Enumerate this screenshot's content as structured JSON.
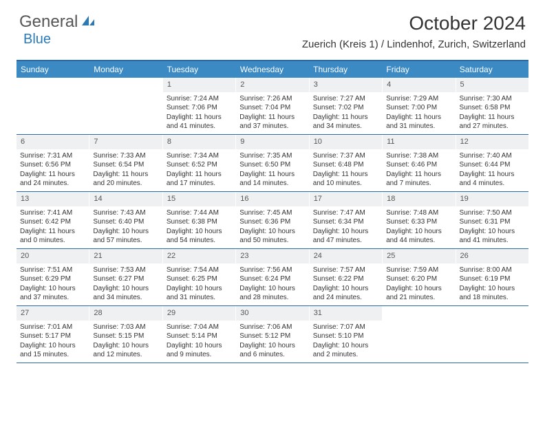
{
  "colors": {
    "header_bg": "#3b8ac4",
    "border": "#2a6aa8",
    "daynum_bg": "#eef0f1",
    "text": "#333333",
    "logo_gray": "#555555",
    "logo_blue": "#2a7ab8"
  },
  "logo": {
    "general": "General",
    "blue": "Blue"
  },
  "title": "October 2024",
  "location": "Zuerich (Kreis 1) / Lindenhof, Zurich, Switzerland",
  "weekdays": [
    "Sunday",
    "Monday",
    "Tuesday",
    "Wednesday",
    "Thursday",
    "Friday",
    "Saturday"
  ],
  "weeks": [
    [
      {
        "n": "",
        "sr": "",
        "ss": "",
        "dl": ""
      },
      {
        "n": "",
        "sr": "",
        "ss": "",
        "dl": ""
      },
      {
        "n": "1",
        "sr": "Sunrise: 7:24 AM",
        "ss": "Sunset: 7:06 PM",
        "dl": "Daylight: 11 hours and 41 minutes."
      },
      {
        "n": "2",
        "sr": "Sunrise: 7:26 AM",
        "ss": "Sunset: 7:04 PM",
        "dl": "Daylight: 11 hours and 37 minutes."
      },
      {
        "n": "3",
        "sr": "Sunrise: 7:27 AM",
        "ss": "Sunset: 7:02 PM",
        "dl": "Daylight: 11 hours and 34 minutes."
      },
      {
        "n": "4",
        "sr": "Sunrise: 7:29 AM",
        "ss": "Sunset: 7:00 PM",
        "dl": "Daylight: 11 hours and 31 minutes."
      },
      {
        "n": "5",
        "sr": "Sunrise: 7:30 AM",
        "ss": "Sunset: 6:58 PM",
        "dl": "Daylight: 11 hours and 27 minutes."
      }
    ],
    [
      {
        "n": "6",
        "sr": "Sunrise: 7:31 AM",
        "ss": "Sunset: 6:56 PM",
        "dl": "Daylight: 11 hours and 24 minutes."
      },
      {
        "n": "7",
        "sr": "Sunrise: 7:33 AM",
        "ss": "Sunset: 6:54 PM",
        "dl": "Daylight: 11 hours and 20 minutes."
      },
      {
        "n": "8",
        "sr": "Sunrise: 7:34 AM",
        "ss": "Sunset: 6:52 PM",
        "dl": "Daylight: 11 hours and 17 minutes."
      },
      {
        "n": "9",
        "sr": "Sunrise: 7:35 AM",
        "ss": "Sunset: 6:50 PM",
        "dl": "Daylight: 11 hours and 14 minutes."
      },
      {
        "n": "10",
        "sr": "Sunrise: 7:37 AM",
        "ss": "Sunset: 6:48 PM",
        "dl": "Daylight: 11 hours and 10 minutes."
      },
      {
        "n": "11",
        "sr": "Sunrise: 7:38 AM",
        "ss": "Sunset: 6:46 PM",
        "dl": "Daylight: 11 hours and 7 minutes."
      },
      {
        "n": "12",
        "sr": "Sunrise: 7:40 AM",
        "ss": "Sunset: 6:44 PM",
        "dl": "Daylight: 11 hours and 4 minutes."
      }
    ],
    [
      {
        "n": "13",
        "sr": "Sunrise: 7:41 AM",
        "ss": "Sunset: 6:42 PM",
        "dl": "Daylight: 11 hours and 0 minutes."
      },
      {
        "n": "14",
        "sr": "Sunrise: 7:43 AM",
        "ss": "Sunset: 6:40 PM",
        "dl": "Daylight: 10 hours and 57 minutes."
      },
      {
        "n": "15",
        "sr": "Sunrise: 7:44 AM",
        "ss": "Sunset: 6:38 PM",
        "dl": "Daylight: 10 hours and 54 minutes."
      },
      {
        "n": "16",
        "sr": "Sunrise: 7:45 AM",
        "ss": "Sunset: 6:36 PM",
        "dl": "Daylight: 10 hours and 50 minutes."
      },
      {
        "n": "17",
        "sr": "Sunrise: 7:47 AM",
        "ss": "Sunset: 6:34 PM",
        "dl": "Daylight: 10 hours and 47 minutes."
      },
      {
        "n": "18",
        "sr": "Sunrise: 7:48 AM",
        "ss": "Sunset: 6:33 PM",
        "dl": "Daylight: 10 hours and 44 minutes."
      },
      {
        "n": "19",
        "sr": "Sunrise: 7:50 AM",
        "ss": "Sunset: 6:31 PM",
        "dl": "Daylight: 10 hours and 41 minutes."
      }
    ],
    [
      {
        "n": "20",
        "sr": "Sunrise: 7:51 AM",
        "ss": "Sunset: 6:29 PM",
        "dl": "Daylight: 10 hours and 37 minutes."
      },
      {
        "n": "21",
        "sr": "Sunrise: 7:53 AM",
        "ss": "Sunset: 6:27 PM",
        "dl": "Daylight: 10 hours and 34 minutes."
      },
      {
        "n": "22",
        "sr": "Sunrise: 7:54 AM",
        "ss": "Sunset: 6:25 PM",
        "dl": "Daylight: 10 hours and 31 minutes."
      },
      {
        "n": "23",
        "sr": "Sunrise: 7:56 AM",
        "ss": "Sunset: 6:24 PM",
        "dl": "Daylight: 10 hours and 28 minutes."
      },
      {
        "n": "24",
        "sr": "Sunrise: 7:57 AM",
        "ss": "Sunset: 6:22 PM",
        "dl": "Daylight: 10 hours and 24 minutes."
      },
      {
        "n": "25",
        "sr": "Sunrise: 7:59 AM",
        "ss": "Sunset: 6:20 PM",
        "dl": "Daylight: 10 hours and 21 minutes."
      },
      {
        "n": "26",
        "sr": "Sunrise: 8:00 AM",
        "ss": "Sunset: 6:19 PM",
        "dl": "Daylight: 10 hours and 18 minutes."
      }
    ],
    [
      {
        "n": "27",
        "sr": "Sunrise: 7:01 AM",
        "ss": "Sunset: 5:17 PM",
        "dl": "Daylight: 10 hours and 15 minutes."
      },
      {
        "n": "28",
        "sr": "Sunrise: 7:03 AM",
        "ss": "Sunset: 5:15 PM",
        "dl": "Daylight: 10 hours and 12 minutes."
      },
      {
        "n": "29",
        "sr": "Sunrise: 7:04 AM",
        "ss": "Sunset: 5:14 PM",
        "dl": "Daylight: 10 hours and 9 minutes."
      },
      {
        "n": "30",
        "sr": "Sunrise: 7:06 AM",
        "ss": "Sunset: 5:12 PM",
        "dl": "Daylight: 10 hours and 6 minutes."
      },
      {
        "n": "31",
        "sr": "Sunrise: 7:07 AM",
        "ss": "Sunset: 5:10 PM",
        "dl": "Daylight: 10 hours and 2 minutes."
      },
      {
        "n": "",
        "sr": "",
        "ss": "",
        "dl": ""
      },
      {
        "n": "",
        "sr": "",
        "ss": "",
        "dl": ""
      }
    ]
  ]
}
